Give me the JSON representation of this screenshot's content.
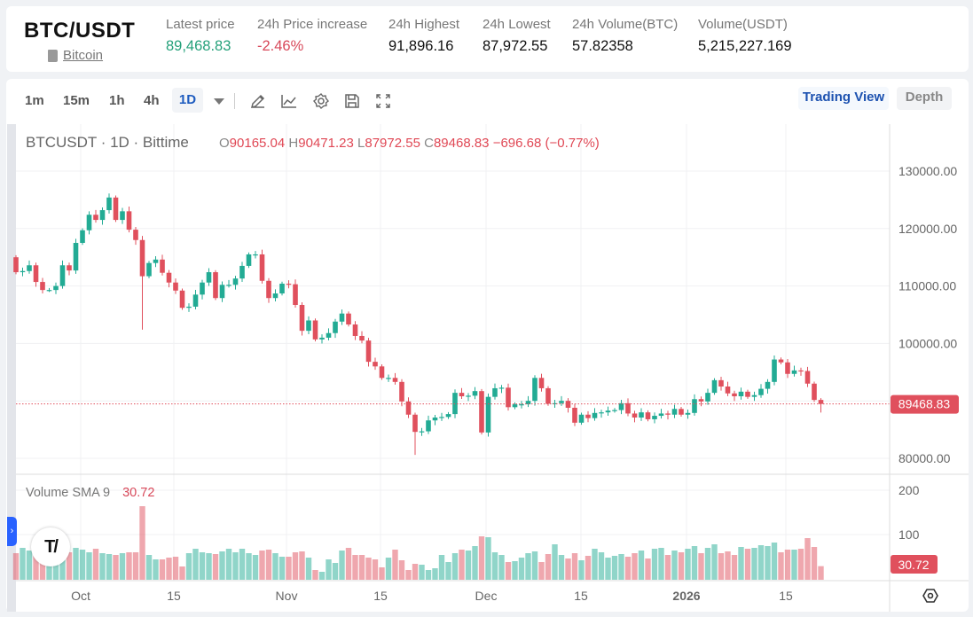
{
  "header": {
    "pair": "BTC/USDT",
    "coin_link": "Bitcoin",
    "stats": [
      {
        "label": "Latest price",
        "value": "89,468.83",
        "color": "#26a17b"
      },
      {
        "label": "24h Price increase",
        "value": "-2.46%",
        "color": "#d8495a"
      },
      {
        "label": "24h Highest",
        "value": "91,896.16"
      },
      {
        "label": "24h Lowest",
        "value": "87,972.55"
      },
      {
        "label": "24h Volume(BTC)",
        "value": "57.82358"
      },
      {
        "label": "Volume(USDT)",
        "value": "5,215,227.169"
      }
    ]
  },
  "toolbar": {
    "timeframes": [
      "1m",
      "15m",
      "1h",
      "4h",
      "1D"
    ],
    "active_timeframe": "1D",
    "icons": [
      "pencil-icon",
      "indicator-icon",
      "gear-icon",
      "save-icon",
      "fullscreen-icon"
    ],
    "trading_view": "Trading View",
    "depth": "Depth"
  },
  "chart": {
    "symbol_line": "BTCUSDT · 1D · Bittime",
    "o_key": "O",
    "o": "90165.04",
    "h_key": "H",
    "h": "90471.23",
    "l_key": "L",
    "l": "87972.55",
    "c_key": "C",
    "c": "89468.83",
    "change": "−696.68 (−0.77%)",
    "volume_label": "Volume SMA 9",
    "volume_value": "30.72",
    "current_price_label": "89468.83",
    "current_volume_label": "30.72",
    "price_ticks": [
      "130000.00",
      "120000.00",
      "110000.00",
      "100000.00",
      "80000.00"
    ],
    "volume_ticks": [
      "200",
      "100"
    ],
    "x_ticks": [
      {
        "label": "Oct",
        "bold": false
      },
      {
        "label": "15",
        "bold": false
      },
      {
        "label": "Nov",
        "bold": false
      },
      {
        "label": "15",
        "bold": false
      },
      {
        "label": "Dec",
        "bold": false
      },
      {
        "label": "15",
        "bold": false
      },
      {
        "label": "2026",
        "bold": true
      },
      {
        "label": "15",
        "bold": false
      }
    ],
    "up_color": "#22ab94",
    "down_color": "#e0505d",
    "first_open": 115000,
    "closes": [
      112400,
      112600,
      113600,
      110700,
      109300,
      109300,
      110000,
      113600,
      112700,
      117500,
      119700,
      122400,
      121500,
      123200,
      125400,
      121500,
      123000,
      119800,
      118000,
      111700,
      114000,
      114600,
      112300,
      110600,
      109200,
      106200,
      106400,
      108500,
      110600,
      112400,
      107900,
      110200,
      110200,
      111300,
      113500,
      115500,
      115500,
      110900,
      107900,
      108700,
      110400,
      110300,
      106700,
      102200,
      104000,
      100700,
      101000,
      101800,
      103800,
      105200,
      103300,
      101300,
      100500,
      96800,
      96000,
      94000,
      94000,
      93300,
      89900,
      87600,
      84600,
      84700,
      86600,
      87100,
      87200,
      87700,
      91400,
      90800,
      90900,
      91700,
      84500,
      90700,
      92200,
      92300,
      88900,
      89400,
      89400,
      90000,
      94000,
      92200,
      89500,
      89600,
      90000,
      88800,
      86200,
      87600,
      87000,
      87900,
      88000,
      88300,
      88400,
      89600,
      87800,
      87100,
      88000,
      86800,
      87400,
      87800,
      87600,
      88600,
      87600,
      87900,
      90300,
      89900,
      91400,
      93600,
      92500,
      91300,
      90800,
      91600,
      90700,
      91000,
      92100,
      93300,
      97200,
      96700,
      94700,
      95300,
      95200,
      93000,
      90165.04,
      89468.83
    ],
    "notable_lows": {
      "19": 102400,
      "60": 80600,
      "121": 87972.55
    },
    "notable_highs": {
      "121": 90471.23
    },
    "volumes": [
      60,
      72,
      66,
      70,
      58,
      54,
      62,
      70,
      62,
      72,
      68,
      62,
      70,
      60,
      58,
      56,
      60,
      62,
      62,
      166,
      56,
      46,
      46,
      50,
      52,
      30,
      60,
      70,
      62,
      60,
      58,
      64,
      70,
      62,
      70,
      60,
      56,
      66,
      68,
      60,
      52,
      52,
      62,
      64,
      50,
      22,
      18,
      46,
      38,
      66,
      72,
      56,
      56,
      50,
      46,
      28,
      50,
      68,
      44,
      22,
      36,
      34,
      22,
      26,
      56,
      40,
      60,
      68,
      66,
      76,
      98,
      96,
      62,
      56,
      40,
      42,
      50,
      60,
      64,
      40,
      58,
      80,
      56,
      48,
      60,
      44,
      54,
      70,
      62,
      50,
      54,
      58,
      52,
      60,
      66,
      48,
      70,
      72,
      56,
      66,
      62,
      70,
      76,
      60,
      72,
      80,
      60,
      64,
      56,
      74,
      70,
      72,
      78,
      76,
      84,
      62,
      68,
      68,
      70,
      94,
      74,
      30.72
    ]
  }
}
